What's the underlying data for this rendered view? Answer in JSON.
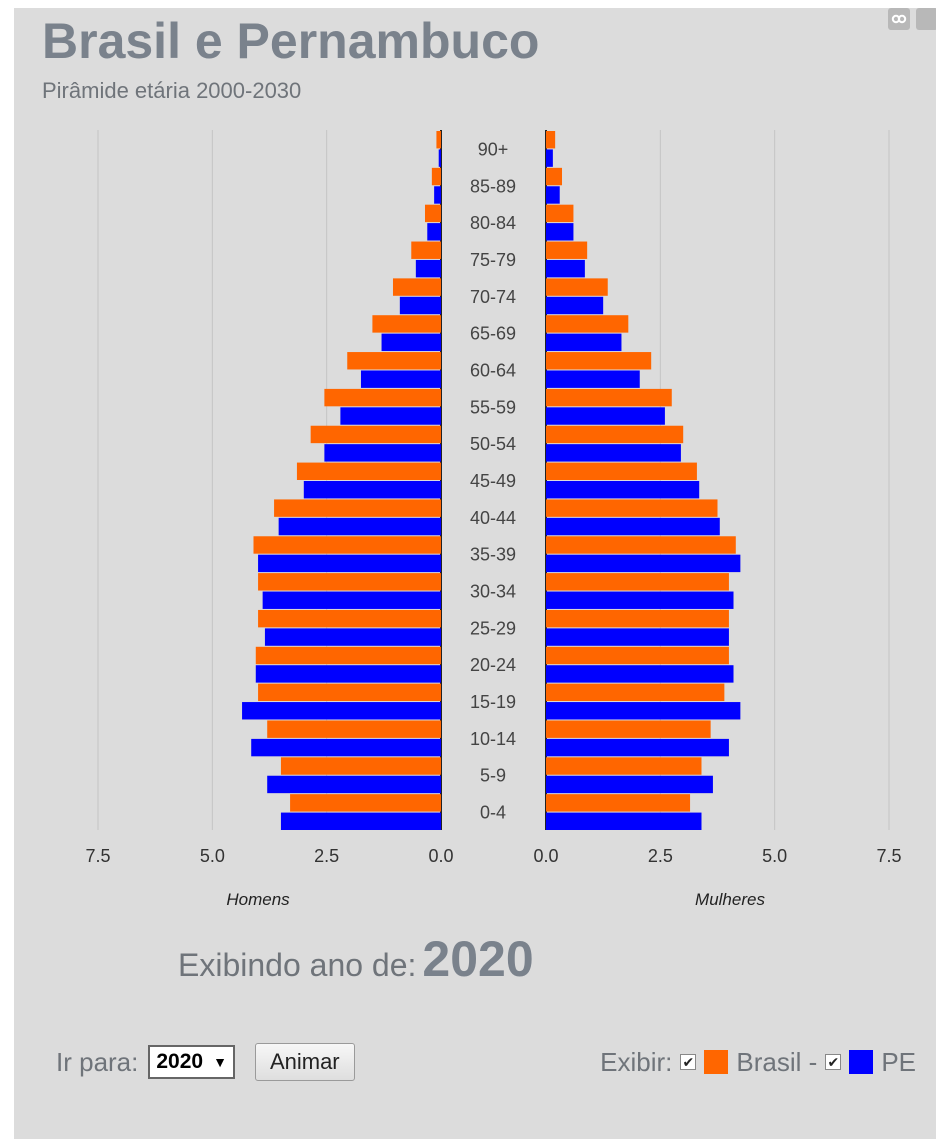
{
  "header": {
    "title": "Brasil e Pernambuco",
    "subtitle": "Pirâmide etária 2000-2030"
  },
  "share": {
    "icons": [
      "link-icon",
      "share-icon"
    ]
  },
  "chart_data": {
    "type": "bar",
    "orientation": "horizontal-population-pyramid",
    "categories": [
      "90+",
      "85-89",
      "80-84",
      "75-79",
      "70-74",
      "65-69",
      "60-64",
      "55-59",
      "50-54",
      "45-49",
      "40-44",
      "35-39",
      "30-34",
      "25-29",
      "20-24",
      "15-19",
      "10-14",
      "5-9",
      "0-4"
    ],
    "left_panel": {
      "label": "Homens",
      "ticks": [
        "7.5",
        "5.0",
        "2.5",
        "0.0"
      ],
      "tick_values": [
        7.5,
        5.0,
        2.5,
        0.0
      ],
      "xlim": [
        0,
        7.5
      ],
      "series": [
        {
          "name": "Brasil",
          "color": "#ff6600",
          "values": [
            0.1,
            0.2,
            0.35,
            0.65,
            1.05,
            1.5,
            2.05,
            2.55,
            2.85,
            3.15,
            3.65,
            4.1,
            4.0,
            4.0,
            4.05,
            4.0,
            3.8,
            3.5,
            3.3
          ]
        },
        {
          "name": "PE",
          "color": "#0000ff",
          "values": [
            0.05,
            0.15,
            0.3,
            0.55,
            0.9,
            1.3,
            1.75,
            2.2,
            2.55,
            3.0,
            3.55,
            4.0,
            3.9,
            3.85,
            4.05,
            4.35,
            4.15,
            3.8,
            3.5
          ]
        }
      ]
    },
    "right_panel": {
      "label": "Mulheres",
      "ticks": [
        "0.0",
        "2.5",
        "5.0",
        "7.5"
      ],
      "tick_values": [
        0.0,
        2.5,
        5.0,
        7.5
      ],
      "xlim": [
        0,
        7.5
      ],
      "series": [
        {
          "name": "Brasil",
          "color": "#ff6600",
          "values": [
            0.2,
            0.35,
            0.6,
            0.9,
            1.35,
            1.8,
            2.3,
            2.75,
            3.0,
            3.3,
            3.75,
            4.15,
            4.0,
            4.0,
            4.0,
            3.9,
            3.6,
            3.4,
            3.15
          ]
        },
        {
          "name": "PE",
          "color": "#0000ff",
          "values": [
            0.15,
            0.3,
            0.6,
            0.85,
            1.25,
            1.65,
            2.05,
            2.6,
            2.95,
            3.35,
            3.8,
            4.25,
            4.1,
            4.0,
            4.1,
            4.25,
            4.0,
            3.65,
            3.4
          ]
        }
      ]
    },
    "grid": true
  },
  "footer": {
    "showing_label": "Exibindo ano de:",
    "year": "2020",
    "goto_label": "Ir para:",
    "select_value": "2020",
    "animate_label": "Animar",
    "show_label": "Exibir:",
    "legend": [
      {
        "label": "Brasil -",
        "color": "#ff6600",
        "checked": true
      },
      {
        "label": "PE",
        "color": "#0000ff",
        "checked": true
      }
    ]
  }
}
